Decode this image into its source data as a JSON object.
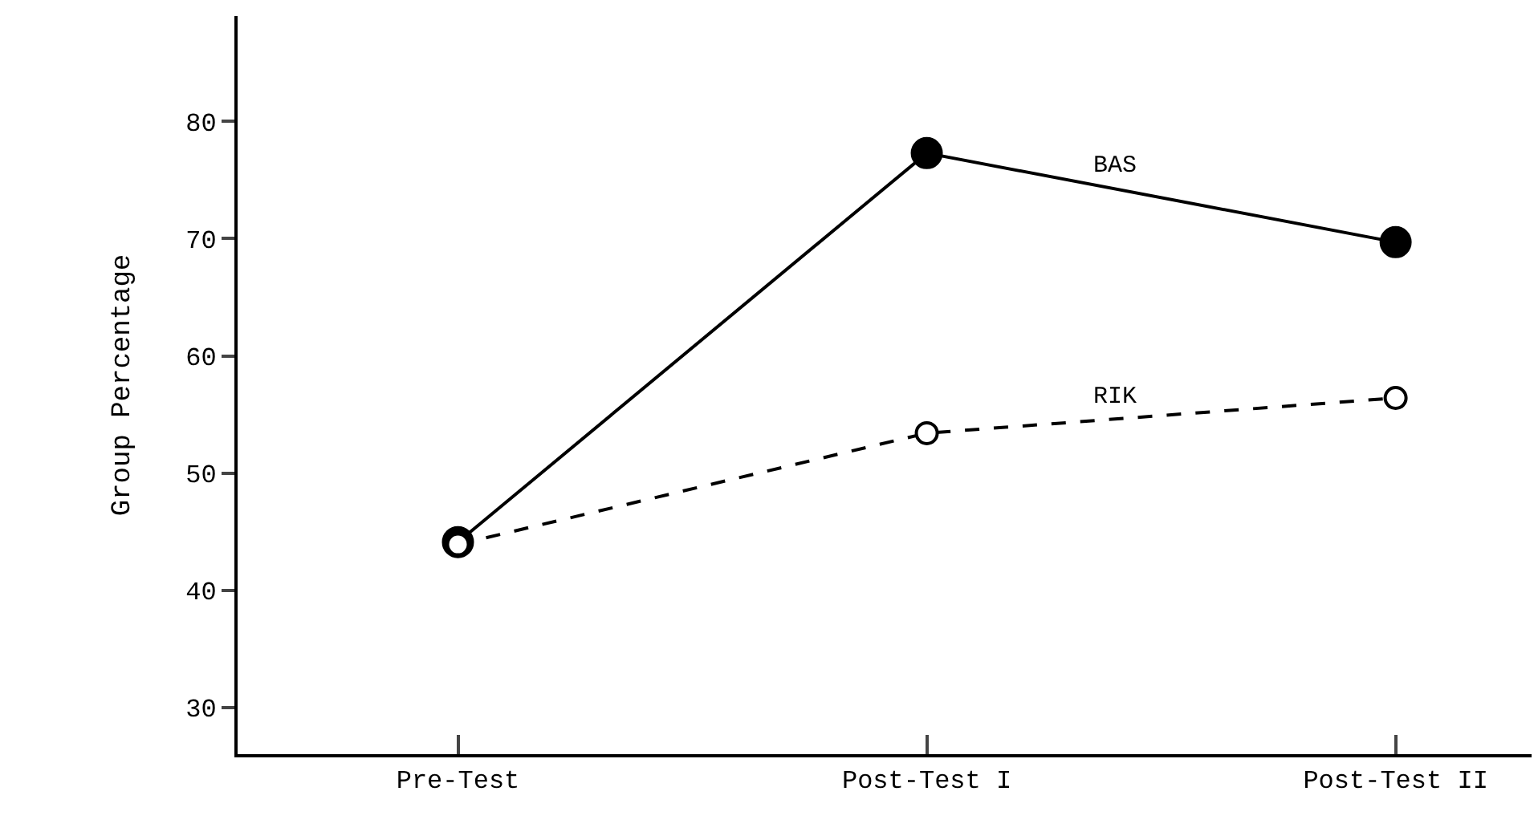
{
  "chart_data": {
    "type": "line",
    "ylabel": "Group Percentage",
    "categories": [
      "Pre-Test",
      "Post-Test I",
      "Post-Test II"
    ],
    "series": [
      {
        "name": "BAS",
        "color": "#000000",
        "values": [
          44.1,
          77.3,
          69.7
        ],
        "line_style": "solid"
      },
      {
        "name": "RIK",
        "color": "#000000",
        "values": [
          43.9,
          53.4,
          56.4
        ],
        "line_style": "dashed"
      }
    ],
    "ylim": [
      26,
      89
    ],
    "yticks": [
      30,
      40,
      50,
      60,
      70,
      80
    ],
    "marker": "circle",
    "grid": false,
    "legend": false
  }
}
